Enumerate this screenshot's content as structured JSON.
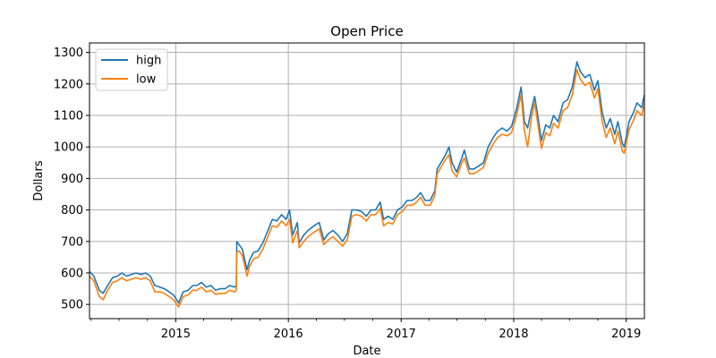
{
  "chart_data": {
    "type": "line",
    "title": "Open Price",
    "xlabel": "Date",
    "ylabel": "Dollars",
    "xlim": [
      "2014-03-27",
      "2019-03-01"
    ],
    "ylim": [
      455,
      1330
    ],
    "yticks": [
      500,
      600,
      700,
      800,
      900,
      1000,
      1100,
      1200,
      1300
    ],
    "xticks": [
      {
        "date": "2015-01-01",
        "label": "2015"
      },
      {
        "date": "2016-01-01",
        "label": "2016"
      },
      {
        "date": "2017-01-01",
        "label": "2017"
      },
      {
        "date": "2018-01-01",
        "label": "2018"
      },
      {
        "date": "2019-01-01",
        "label": "2019"
      }
    ],
    "grid": true,
    "legend": "top-left",
    "series": [
      {
        "name": "high",
        "color": "#1f77b4",
        "points": [
          [
            "2014-03-27",
            605
          ],
          [
            "2014-04-10",
            590
          ],
          [
            "2014-04-28",
            545
          ],
          [
            "2014-05-10",
            535
          ],
          [
            "2014-05-25",
            560
          ],
          [
            "2014-06-10",
            585
          ],
          [
            "2014-06-25",
            590
          ],
          [
            "2014-07-10",
            600
          ],
          [
            "2014-07-25",
            590
          ],
          [
            "2014-08-10",
            595
          ],
          [
            "2014-08-25",
            600
          ],
          [
            "2014-09-10",
            595
          ],
          [
            "2014-09-25",
            600
          ],
          [
            "2014-10-10",
            590
          ],
          [
            "2014-10-25",
            560
          ],
          [
            "2014-11-10",
            555
          ],
          [
            "2014-11-25",
            550
          ],
          [
            "2014-12-10",
            540
          ],
          [
            "2014-12-25",
            530
          ],
          [
            "2015-01-10",
            505
          ],
          [
            "2015-01-25",
            540
          ],
          [
            "2015-02-10",
            545
          ],
          [
            "2015-02-25",
            560
          ],
          [
            "2015-03-10",
            560
          ],
          [
            "2015-03-25",
            570
          ],
          [
            "2015-04-10",
            555
          ],
          [
            "2015-04-25",
            560
          ],
          [
            "2015-05-10",
            545
          ],
          [
            "2015-05-25",
            550
          ],
          [
            "2015-06-10",
            550
          ],
          [
            "2015-06-25",
            560
          ],
          [
            "2015-07-10",
            555
          ],
          [
            "2015-07-16",
            560
          ],
          [
            "2015-07-18",
            700
          ],
          [
            "2015-07-25",
            690
          ],
          [
            "2015-08-05",
            675
          ],
          [
            "2015-08-20",
            610
          ],
          [
            "2015-08-28",
            640
          ],
          [
            "2015-09-10",
            665
          ],
          [
            "2015-09-25",
            670
          ],
          [
            "2015-10-10",
            695
          ],
          [
            "2015-10-25",
            730
          ],
          [
            "2015-11-10",
            770
          ],
          [
            "2015-11-25",
            765
          ],
          [
            "2015-12-10",
            785
          ],
          [
            "2015-12-25",
            770
          ],
          [
            "2016-01-05",
            800
          ],
          [
            "2016-01-15",
            720
          ],
          [
            "2016-01-30",
            760
          ],
          [
            "2016-02-05",
            695
          ],
          [
            "2016-02-20",
            720
          ],
          [
            "2016-03-05",
            735
          ],
          [
            "2016-03-25",
            750
          ],
          [
            "2016-04-10",
            760
          ],
          [
            "2016-04-25",
            705
          ],
          [
            "2016-05-10",
            725
          ],
          [
            "2016-05-25",
            735
          ],
          [
            "2016-06-10",
            720
          ],
          [
            "2016-06-25",
            700
          ],
          [
            "2016-07-10",
            725
          ],
          [
            "2016-07-25",
            800
          ],
          [
            "2016-08-10",
            800
          ],
          [
            "2016-08-25",
            795
          ],
          [
            "2016-09-10",
            780
          ],
          [
            "2016-09-25",
            800
          ],
          [
            "2016-10-10",
            800
          ],
          [
            "2016-10-25",
            825
          ],
          [
            "2016-11-05",
            770
          ],
          [
            "2016-11-20",
            780
          ],
          [
            "2016-12-05",
            770
          ],
          [
            "2016-12-20",
            800
          ],
          [
            "2017-01-05",
            810
          ],
          [
            "2017-01-20",
            830
          ],
          [
            "2017-02-05",
            830
          ],
          [
            "2017-02-20",
            840
          ],
          [
            "2017-03-05",
            855
          ],
          [
            "2017-03-20",
            830
          ],
          [
            "2017-04-05",
            830
          ],
          [
            "2017-04-20",
            860
          ],
          [
            "2017-04-28",
            930
          ],
          [
            "2017-05-10",
            950
          ],
          [
            "2017-05-25",
            975
          ],
          [
            "2017-06-05",
            1000
          ],
          [
            "2017-06-15",
            950
          ],
          [
            "2017-06-30",
            920
          ],
          [
            "2017-07-15",
            960
          ],
          [
            "2017-07-25",
            990
          ],
          [
            "2017-08-10",
            930
          ],
          [
            "2017-08-25",
            930
          ],
          [
            "2017-09-10",
            940
          ],
          [
            "2017-09-25",
            950
          ],
          [
            "2017-10-10",
            1000
          ],
          [
            "2017-10-27",
            1030
          ],
          [
            "2017-11-10",
            1050
          ],
          [
            "2017-11-25",
            1060
          ],
          [
            "2017-12-10",
            1050
          ],
          [
            "2017-12-25",
            1065
          ],
          [
            "2018-01-10",
            1120
          ],
          [
            "2018-01-25",
            1190
          ],
          [
            "2018-02-05",
            1080
          ],
          [
            "2018-02-15",
            1060
          ],
          [
            "2018-02-28",
            1120
          ],
          [
            "2018-03-10",
            1160
          ],
          [
            "2018-03-20",
            1100
          ],
          [
            "2018-04-01",
            1020
          ],
          [
            "2018-04-15",
            1070
          ],
          [
            "2018-04-28",
            1060
          ],
          [
            "2018-05-10",
            1100
          ],
          [
            "2018-05-25",
            1080
          ],
          [
            "2018-06-10",
            1140
          ],
          [
            "2018-06-25",
            1150
          ],
          [
            "2018-07-10",
            1190
          ],
          [
            "2018-07-25",
            1270
          ],
          [
            "2018-08-05",
            1240
          ],
          [
            "2018-08-20",
            1220
          ],
          [
            "2018-09-05",
            1230
          ],
          [
            "2018-09-20",
            1180
          ],
          [
            "2018-10-01",
            1210
          ],
          [
            "2018-10-15",
            1110
          ],
          [
            "2018-10-28",
            1060
          ],
          [
            "2018-11-10",
            1090
          ],
          [
            "2018-11-25",
            1040
          ],
          [
            "2018-12-05",
            1080
          ],
          [
            "2018-12-20",
            1010
          ],
          [
            "2018-12-26",
            1000
          ],
          [
            "2019-01-10",
            1080
          ],
          [
            "2019-01-25",
            1110
          ],
          [
            "2019-02-05",
            1140
          ],
          [
            "2019-02-20",
            1125
          ],
          [
            "2019-03-01",
            1165
          ]
        ]
      },
      {
        "name": "low",
        "color": "#ff7f0e",
        "points": [
          [
            "2014-03-27",
            590
          ],
          [
            "2014-04-10",
            575
          ],
          [
            "2014-04-28",
            525
          ],
          [
            "2014-05-10",
            515
          ],
          [
            "2014-05-25",
            545
          ],
          [
            "2014-06-10",
            570
          ],
          [
            "2014-06-25",
            575
          ],
          [
            "2014-07-10",
            585
          ],
          [
            "2014-07-25",
            575
          ],
          [
            "2014-08-10",
            580
          ],
          [
            "2014-08-25",
            585
          ],
          [
            "2014-09-10",
            580
          ],
          [
            "2014-09-25",
            585
          ],
          [
            "2014-10-10",
            575
          ],
          [
            "2014-10-25",
            540
          ],
          [
            "2014-11-10",
            540
          ],
          [
            "2014-11-25",
            535
          ],
          [
            "2014-12-10",
            525
          ],
          [
            "2014-12-25",
            515
          ],
          [
            "2015-01-10",
            492
          ],
          [
            "2015-01-25",
            525
          ],
          [
            "2015-02-10",
            530
          ],
          [
            "2015-02-25",
            545
          ],
          [
            "2015-03-10",
            545
          ],
          [
            "2015-03-25",
            555
          ],
          [
            "2015-04-10",
            540
          ],
          [
            "2015-04-25",
            545
          ],
          [
            "2015-05-10",
            532
          ],
          [
            "2015-05-25",
            535
          ],
          [
            "2015-06-10",
            535
          ],
          [
            "2015-06-25",
            545
          ],
          [
            "2015-07-10",
            540
          ],
          [
            "2015-07-16",
            545
          ],
          [
            "2015-07-18",
            665
          ],
          [
            "2015-07-25",
            670
          ],
          [
            "2015-08-05",
            655
          ],
          [
            "2015-08-20",
            590
          ],
          [
            "2015-08-28",
            620
          ],
          [
            "2015-09-10",
            645
          ],
          [
            "2015-09-25",
            650
          ],
          [
            "2015-10-10",
            675
          ],
          [
            "2015-10-25",
            710
          ],
          [
            "2015-11-10",
            750
          ],
          [
            "2015-11-25",
            745
          ],
          [
            "2015-12-10",
            765
          ],
          [
            "2015-12-25",
            750
          ],
          [
            "2016-01-05",
            770
          ],
          [
            "2016-01-15",
            695
          ],
          [
            "2016-01-30",
            735
          ],
          [
            "2016-02-05",
            680
          ],
          [
            "2016-02-20",
            700
          ],
          [
            "2016-03-05",
            715
          ],
          [
            "2016-03-25",
            730
          ],
          [
            "2016-04-10",
            740
          ],
          [
            "2016-04-25",
            690
          ],
          [
            "2016-05-10",
            705
          ],
          [
            "2016-05-25",
            715
          ],
          [
            "2016-06-10",
            700
          ],
          [
            "2016-06-25",
            685
          ],
          [
            "2016-07-10",
            705
          ],
          [
            "2016-07-25",
            780
          ],
          [
            "2016-08-10",
            785
          ],
          [
            "2016-08-25",
            780
          ],
          [
            "2016-09-10",
            765
          ],
          [
            "2016-09-25",
            785
          ],
          [
            "2016-10-10",
            785
          ],
          [
            "2016-10-25",
            805
          ],
          [
            "2016-11-05",
            750
          ],
          [
            "2016-11-20",
            760
          ],
          [
            "2016-12-05",
            755
          ],
          [
            "2016-12-20",
            785
          ],
          [
            "2017-01-05",
            795
          ],
          [
            "2017-01-20",
            815
          ],
          [
            "2017-02-05",
            815
          ],
          [
            "2017-02-20",
            825
          ],
          [
            "2017-03-05",
            840
          ],
          [
            "2017-03-20",
            815
          ],
          [
            "2017-04-05",
            815
          ],
          [
            "2017-04-20",
            845
          ],
          [
            "2017-04-28",
            915
          ],
          [
            "2017-05-10",
            935
          ],
          [
            "2017-05-25",
            960
          ],
          [
            "2017-06-05",
            975
          ],
          [
            "2017-06-15",
            925
          ],
          [
            "2017-06-30",
            905
          ],
          [
            "2017-07-15",
            945
          ],
          [
            "2017-07-25",
            965
          ],
          [
            "2017-08-10",
            915
          ],
          [
            "2017-08-25",
            915
          ],
          [
            "2017-09-10",
            925
          ],
          [
            "2017-09-25",
            935
          ],
          [
            "2017-10-10",
            980
          ],
          [
            "2017-10-27",
            1010
          ],
          [
            "2017-11-10",
            1030
          ],
          [
            "2017-11-25",
            1040
          ],
          [
            "2017-12-10",
            1035
          ],
          [
            "2017-12-25",
            1045
          ],
          [
            "2018-01-10",
            1100
          ],
          [
            "2018-01-25",
            1165
          ],
          [
            "2018-02-05",
            1050
          ],
          [
            "2018-02-15",
            1000
          ],
          [
            "2018-02-28",
            1095
          ],
          [
            "2018-03-10",
            1140
          ],
          [
            "2018-03-20",
            1075
          ],
          [
            "2018-04-01",
            995
          ],
          [
            "2018-04-15",
            1045
          ],
          [
            "2018-04-28",
            1035
          ],
          [
            "2018-05-10",
            1075
          ],
          [
            "2018-05-25",
            1060
          ],
          [
            "2018-06-10",
            1115
          ],
          [
            "2018-06-25",
            1125
          ],
          [
            "2018-07-10",
            1165
          ],
          [
            "2018-07-25",
            1245
          ],
          [
            "2018-08-05",
            1215
          ],
          [
            "2018-08-20",
            1195
          ],
          [
            "2018-09-05",
            1205
          ],
          [
            "2018-09-20",
            1155
          ],
          [
            "2018-10-01",
            1185
          ],
          [
            "2018-10-15",
            1080
          ],
          [
            "2018-10-28",
            1030
          ],
          [
            "2018-11-10",
            1060
          ],
          [
            "2018-11-25",
            1010
          ],
          [
            "2018-12-05",
            1050
          ],
          [
            "2018-12-20",
            985
          ],
          [
            "2018-12-26",
            980
          ],
          [
            "2019-01-10",
            1055
          ],
          [
            "2019-01-25",
            1085
          ],
          [
            "2019-02-05",
            1115
          ],
          [
            "2019-02-20",
            1100
          ],
          [
            "2019-03-01",
            1140
          ]
        ]
      }
    ]
  }
}
